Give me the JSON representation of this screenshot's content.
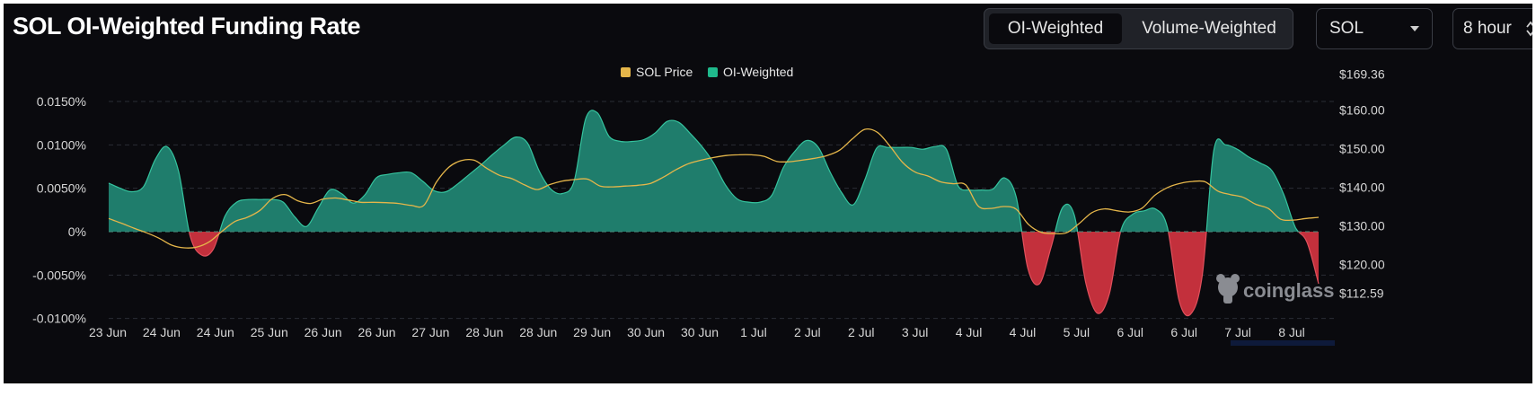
{
  "header": {
    "title": "SOL OI-Weighted Funding Rate",
    "toggle": {
      "options": [
        "OI-Weighted",
        "Volume-Weighted"
      ],
      "selected": "OI-Weighted"
    },
    "coin_select": {
      "value": "SOL",
      "icon": "chevron-down-icon"
    },
    "interval_select": {
      "value": "8 hour",
      "icon": "up-down-chevron-icon"
    }
  },
  "watermark": {
    "text": "coinglass",
    "icon": "coinglass-logo-icon"
  },
  "colors": {
    "background": "#0a0a0e",
    "positive": "#1f7d6c",
    "positive_line": "#35c39e",
    "negative": "#c3303c",
    "price": "#e5b64a",
    "grid": "#2a2d35",
    "text": "#d6d6d6"
  },
  "chart_data": {
    "type": "area",
    "title": "SOL OI-Weighted Funding Rate",
    "legend": {
      "position": "top-center",
      "items": [
        {
          "name": "SOL Price",
          "color": "#e5b64a"
        },
        {
          "name": "OI-Weighted",
          "color": "#1fb98c"
        }
      ]
    },
    "x_tick_labels": [
      "23 Jun",
      "24 Jun",
      "24 Jun",
      "25 Jun",
      "26 Jun",
      "26 Jun",
      "27 Jun",
      "28 Jun",
      "28 Jun",
      "29 Jun",
      "30 Jun",
      "30 Jun",
      "1 Jul",
      "2 Jul",
      "2 Jul",
      "3 Jul",
      "4 Jul",
      "4 Jul",
      "5 Jul",
      "6 Jul",
      "6 Jul",
      "7 Jul",
      "8 Jul"
    ],
    "y_left": {
      "ticks": [
        0.015,
        0.01,
        0.005,
        0,
        -0.005,
        -0.01
      ],
      "labels": [
        "0.0150%",
        "0.0100%",
        "0.0050%",
        "0%",
        "-0.0050%",
        "-0.0100%"
      ],
      "range": [
        -0.0101,
        0.0155
      ]
    },
    "y_right": {
      "ticks": [
        169.36,
        160,
        150,
        140,
        130,
        120,
        112.59
      ],
      "labels": [
        "$169.36",
        "$160.00",
        "$150.00",
        "$140.00",
        "$130.00",
        "$120.00",
        "$112.59"
      ],
      "range": [
        112.59,
        169.36
      ]
    },
    "grid": true,
    "series": [
      {
        "name": "OI-Weighted",
        "axis": "left",
        "unit": "%",
        "values": [
          0.0056,
          0.005,
          0.0046,
          0.0052,
          0.0083,
          0.0098,
          0.007,
          -0.0005,
          -0.0027,
          -0.002,
          0.0018,
          0.0034,
          0.0037,
          0.0037,
          0.0037,
          0.0034,
          0.0017,
          0.0006,
          0.0027,
          0.0048,
          0.0044,
          0.0033,
          0.0042,
          0.0062,
          0.0066,
          0.0068,
          0.0068,
          0.0058,
          0.0047,
          0.0046,
          0.0055,
          0.0066,
          0.0077,
          0.0089,
          0.01,
          0.0109,
          0.0102,
          0.007,
          0.0049,
          0.0044,
          0.0058,
          0.013,
          0.0137,
          0.011,
          0.0104,
          0.0104,
          0.0106,
          0.0114,
          0.0127,
          0.0126,
          0.0113,
          0.0098,
          0.0079,
          0.0054,
          0.0038,
          0.0034,
          0.0034,
          0.0042,
          0.0074,
          0.0093,
          0.0105,
          0.0097,
          0.0069,
          0.0045,
          0.0031,
          0.006,
          0.0096,
          0.0097,
          0.0097,
          0.0097,
          0.0095,
          0.0098,
          0.0095,
          0.0053,
          0.0048,
          0.0048,
          0.0049,
          0.0062,
          0.004,
          -0.0042,
          -0.006,
          -0.0018,
          0.0028,
          0.0019,
          -0.006,
          -0.0094,
          -0.0072,
          0.0001,
          0.002,
          0.0024,
          0.0026,
          0.0005,
          -0.0079,
          -0.0095,
          -0.005,
          0.0094,
          0.01,
          0.0095,
          0.0086,
          0.0079,
          0.007,
          0.0043,
          0.0005,
          -0.0012,
          -0.006
        ]
      },
      {
        "name": "SOL Price",
        "axis": "right",
        "unit": "$",
        "values": [
          131.9,
          130.7,
          129.4,
          128.2,
          126.8,
          125.0,
          124.3,
          124.5,
          125.9,
          128.6,
          131.1,
          132.2,
          134.0,
          137.1,
          138.1,
          136.5,
          135.8,
          136.9,
          137.2,
          136.7,
          136.1,
          136.1,
          136.0,
          135.8,
          135.3,
          135.3,
          141.3,
          145.2,
          146.9,
          147.0,
          144.9,
          143.1,
          142.2,
          140.6,
          139.4,
          140.7,
          141.6,
          142.0,
          142.1,
          140.3,
          140.1,
          140.3,
          140.5,
          141.0,
          142.6,
          144.5,
          146.1,
          147.0,
          147.7,
          148.2,
          148.4,
          148.4,
          148.0,
          146.7,
          146.6,
          147.0,
          147.5,
          148.2,
          149.6,
          152.5,
          155.0,
          154.2,
          150.6,
          146.4,
          143.9,
          142.9,
          141.4,
          140.9,
          140.6,
          135.1,
          134.5,
          135.0,
          134.3,
          130.3,
          128.3,
          128.0,
          128.2,
          130.6,
          133.4,
          134.4,
          133.9,
          133.6,
          134.6,
          137.9,
          139.9,
          141.0,
          141.5,
          141.4,
          139.0,
          138.1,
          137.4,
          135.6,
          134.5,
          131.7,
          131.5,
          131.9,
          132.2
        ]
      }
    ]
  }
}
